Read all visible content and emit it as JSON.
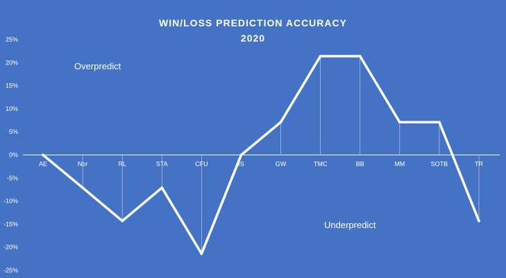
{
  "chart_data": {
    "type": "line",
    "title": "WIN/LOSS PREDICTION ACCURACY",
    "subtitle": "2020",
    "categories": [
      "AE",
      "Nor",
      "RL",
      "STA",
      "CFU",
      "IS",
      "GW",
      "TMC",
      "BB",
      "MM",
      "SOTB",
      "TR"
    ],
    "series": [
      {
        "values": [
          0,
          -7.1,
          -14.3,
          -7.1,
          -21.4,
          0,
          7.1,
          21.4,
          21.4,
          7.1,
          7.1,
          -14.3
        ]
      }
    ],
    "ylim": [
      -25,
      25
    ],
    "yticks": [
      "25%",
      "20%",
      "15%",
      "10%",
      "5%",
      "0%",
      "-5%",
      "-10%",
      "-15%",
      "-20%",
      "-25%"
    ],
    "annotations": {
      "upper": "Overpredict",
      "lower": "Underpredict"
    },
    "grid": false,
    "legend": "none",
    "colors": {
      "background": "#4472C4",
      "line": "#ffffff"
    }
  }
}
